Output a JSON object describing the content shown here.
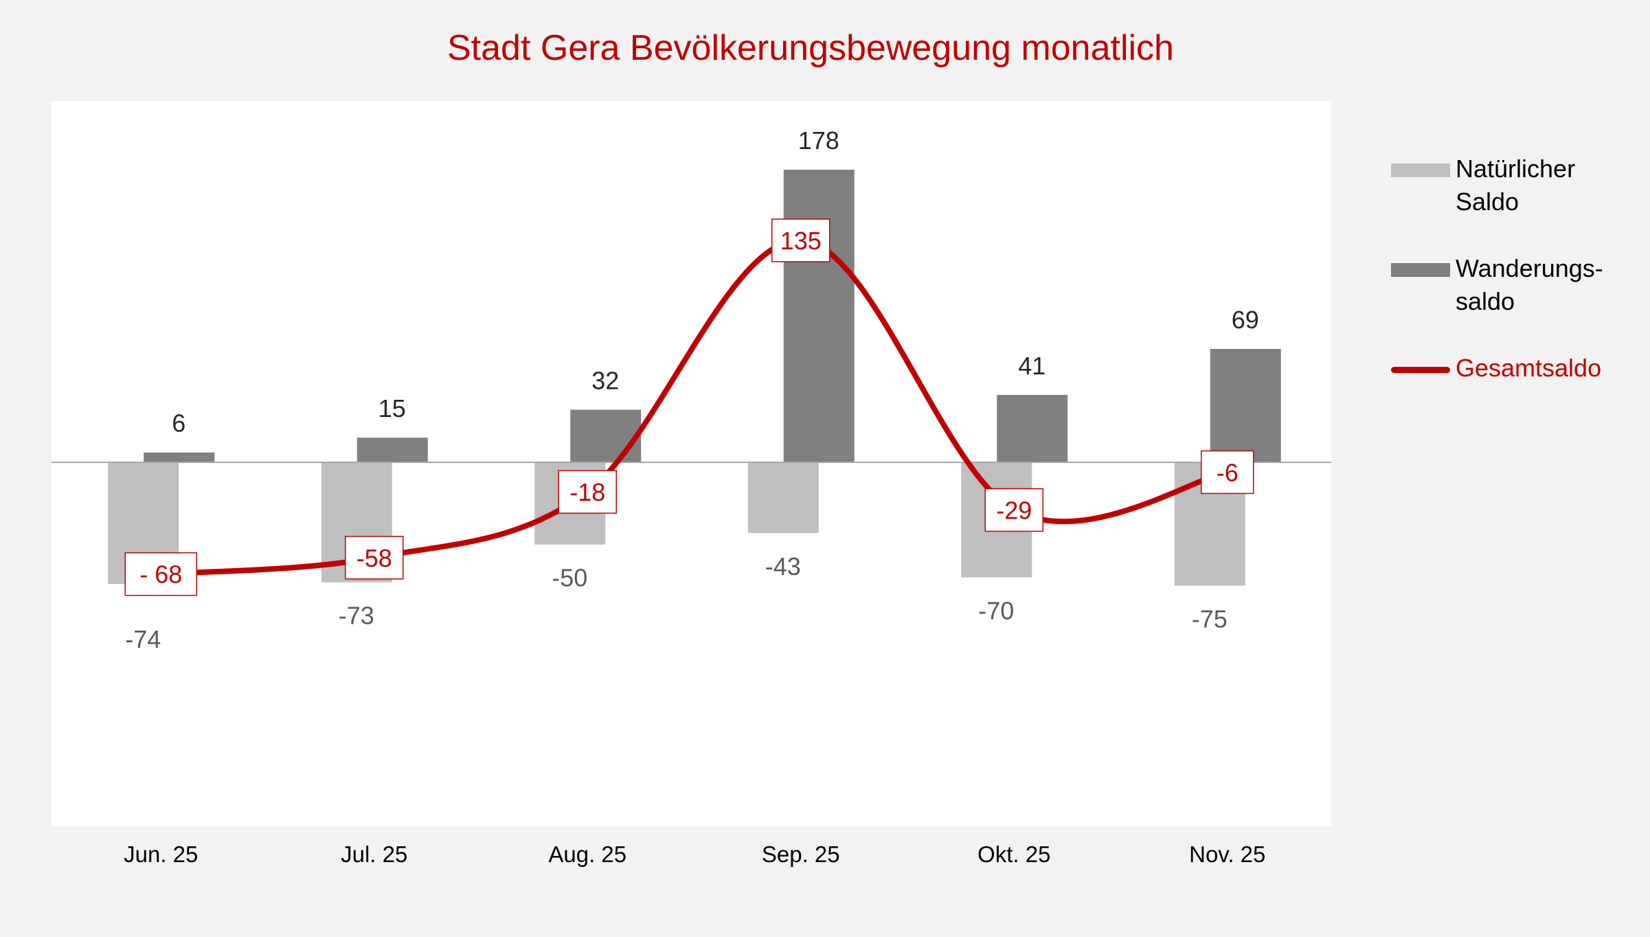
{
  "chart_data": {
    "type": "bar",
    "title": "Stadt Gera Bevölkerungsbewegung monatlich",
    "categories": [
      "Jun. 25",
      "Jul. 25",
      "Aug. 25",
      "Sep. 25",
      "Okt. 25",
      "Nov. 25"
    ],
    "series": [
      {
        "name": "Natürlicher Saldo",
        "type": "bar",
        "color": "#bfbfbf",
        "values": [
          -74,
          -73,
          -50,
          -43,
          -70,
          -75
        ],
        "labels": [
          "-74",
          "-73",
          "-50",
          "-43",
          "-70",
          "-75"
        ]
      },
      {
        "name": "Wanderungssaldo",
        "type": "bar",
        "color": "#808080",
        "values": [
          6,
          15,
          32,
          178,
          41,
          69
        ],
        "labels": [
          "6",
          "15",
          "32",
          "178",
          "41",
          "69"
        ]
      },
      {
        "name": "Gesamtsaldo",
        "type": "line",
        "smooth": true,
        "color": "#c00000",
        "values": [
          -68,
          -58,
          -18,
          135,
          -29,
          -6
        ],
        "labels": [
          "- 68",
          "-58",
          "-18",
          "135",
          "-29",
          "-6"
        ]
      }
    ],
    "legend": {
      "placement": "right",
      "entries": [
        {
          "lines": [
            "Natürlicher",
            "Saldo"
          ],
          "color": "#bfbfbf",
          "kind": "bar"
        },
        {
          "lines": [
            "Wanderungs-",
            "saldo"
          ],
          "color": "#808080",
          "kind": "bar"
        },
        {
          "lines": [
            "Gesamtsaldo"
          ],
          "color": "#c00000",
          "kind": "line"
        }
      ]
    },
    "ylim": [
      -220,
      220
    ],
    "grid": false,
    "y_axis_visible": false,
    "xlabel": "",
    "ylabel": ""
  },
  "colors": {
    "background": "#f2f2f2",
    "plot": "#ffffff",
    "title": "#c00000",
    "zero_line": "#a6a6a6",
    "neg_label": "#595959",
    "pos_label": "#262626"
  }
}
